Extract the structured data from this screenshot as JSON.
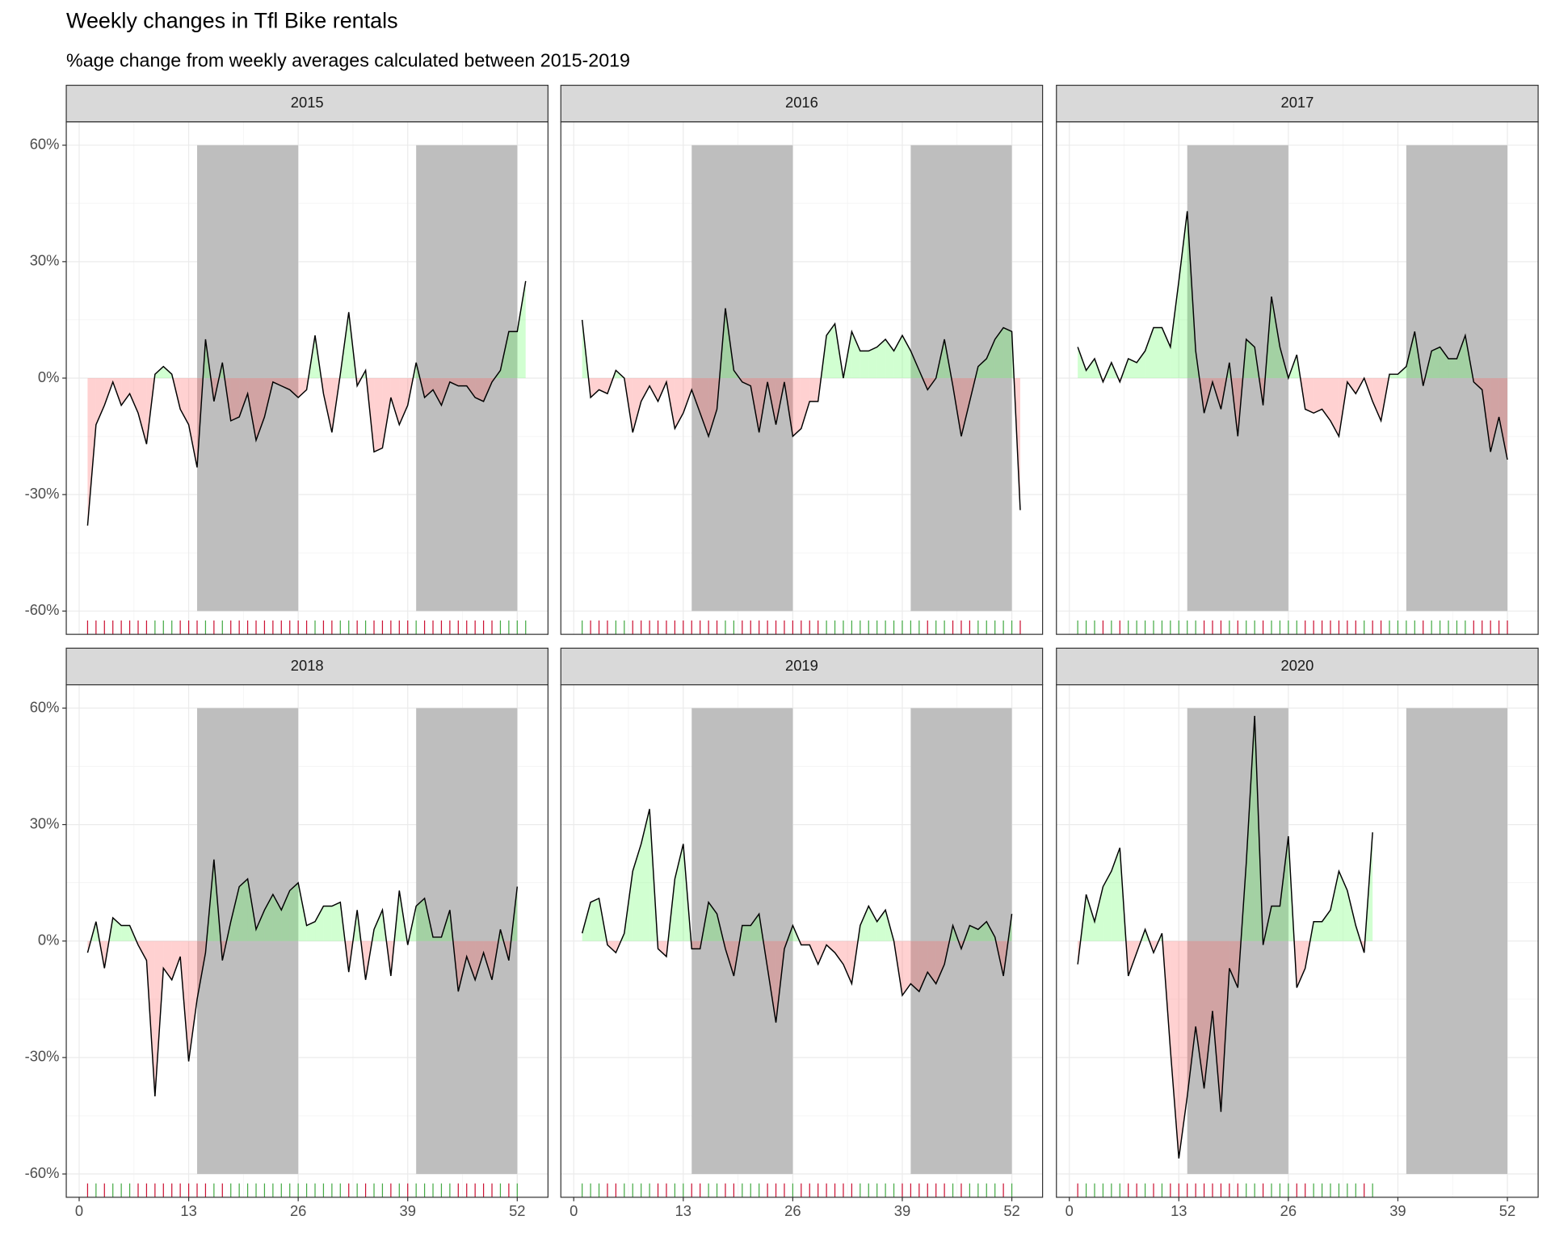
{
  "chart_data": {
    "type": "area",
    "title": "Weekly changes in Tfl Bike rentals",
    "subtitle": "%age change from weekly averages calculated between 2015-2019",
    "xlim": [
      -1.53,
      55.65
    ],
    "xticks": [
      0,
      13,
      26,
      39,
      52
    ],
    "ylim": [
      -66,
      66
    ],
    "yticks": [
      {
        "value": -60,
        "label": "-60%"
      },
      {
        "value": -30,
        "label": "-30%"
      },
      {
        "value": 0,
        "label": "0%"
      },
      {
        "value": 30,
        "label": "30%"
      },
      {
        "value": 60,
        "label": "60%"
      }
    ],
    "grid": true,
    "shaded": [
      {
        "x": [
          14,
          26
        ],
        "y": [
          -60,
          60
        ]
      },
      {
        "x": [
          40,
          52
        ],
        "y": [
          -60,
          60
        ]
      }
    ],
    "shade_color": "#bebebe",
    "positive_color": "#66ff66",
    "negative_color": "#ff6666",
    "rug_positive_color": "#44aa44",
    "rug_negative_color": "#cc1133",
    "line_color": "#000000",
    "facets": [
      {
        "title": "2015",
        "x": [
          1,
          2,
          3,
          4,
          5,
          6,
          7,
          8,
          9,
          10,
          11,
          12,
          13,
          14,
          15,
          16,
          17,
          18,
          19,
          20,
          21,
          22,
          23,
          24,
          25,
          26,
          27,
          28,
          29,
          30,
          31,
          32,
          33,
          34,
          35,
          36,
          37,
          38,
          39,
          40,
          41,
          42,
          43,
          44,
          45,
          46,
          47,
          48,
          49,
          50,
          51,
          52,
          53
        ],
        "values": [
          -38,
          -12,
          -7,
          -1,
          -7,
          -4,
          -9,
          -17,
          1,
          3,
          1,
          -8,
          -12,
          -23,
          10,
          -6,
          4,
          -11,
          -10,
          -4,
          -16,
          -10,
          -1,
          -2,
          -3,
          -5,
          -3,
          11,
          -4,
          -14,
          1,
          17,
          -2,
          2,
          -19,
          -18,
          -5,
          -12,
          -7,
          4,
          -5,
          -3,
          -7,
          -1,
          -2,
          -2,
          -5,
          -6,
          -1,
          2,
          12,
          12,
          25
        ]
      },
      {
        "title": "2016",
        "x": [
          1,
          2,
          3,
          4,
          5,
          6,
          7,
          8,
          9,
          10,
          11,
          12,
          13,
          14,
          15,
          16,
          17,
          18,
          19,
          20,
          21,
          22,
          23,
          24,
          25,
          26,
          27,
          28,
          29,
          30,
          31,
          32,
          33,
          34,
          35,
          36,
          37,
          38,
          39,
          40,
          41,
          42,
          43,
          44,
          45,
          46,
          47,
          48,
          49,
          50,
          51,
          52,
          53
        ],
        "values": [
          15,
          -5,
          -3,
          -4,
          2,
          0,
          -14,
          -6,
          -2,
          -6,
          -1,
          -13,
          -9,
          -3,
          -9,
          -15,
          -8,
          18,
          2,
          -1,
          -2,
          -14,
          -1,
          -12,
          -1,
          -15,
          -13,
          -6,
          -6,
          11,
          14,
          0,
          12,
          7,
          7,
          8,
          10,
          7,
          11,
          7,
          2,
          -3,
          0,
          10,
          -2,
          -15,
          -6,
          3,
          5,
          10,
          13,
          12,
          -34
        ]
      },
      {
        "title": "2017",
        "x": [
          1,
          2,
          3,
          4,
          5,
          6,
          7,
          8,
          9,
          10,
          11,
          12,
          13,
          14,
          15,
          16,
          17,
          18,
          19,
          20,
          21,
          22,
          23,
          24,
          25,
          26,
          27,
          28,
          29,
          30,
          31,
          32,
          33,
          34,
          35,
          36,
          37,
          38,
          39,
          40,
          41,
          42,
          43,
          44,
          45,
          46,
          47,
          48,
          49,
          50,
          51,
          52
        ],
        "values": [
          8,
          2,
          5,
          -1,
          4,
          -1,
          5,
          4,
          7,
          13,
          13,
          8,
          25,
          43,
          7,
          -9,
          -1,
          -8,
          4,
          -15,
          10,
          8,
          -7,
          21,
          8,
          0,
          6,
          -8,
          -9,
          -8,
          -11,
          -15,
          -1,
          -4,
          0,
          -6,
          -11,
          1,
          1,
          3,
          12,
          -2,
          7,
          8,
          5,
          5,
          11,
          -1,
          -3,
          -19,
          -10,
          -21
        ]
      },
      {
        "title": "2018",
        "x": [
          1,
          2,
          3,
          4,
          5,
          6,
          7,
          8,
          9,
          10,
          11,
          12,
          13,
          14,
          15,
          16,
          17,
          18,
          19,
          20,
          21,
          22,
          23,
          24,
          25,
          26,
          27,
          28,
          29,
          30,
          31,
          32,
          33,
          34,
          35,
          36,
          37,
          38,
          39,
          40,
          41,
          42,
          43,
          44,
          45,
          46,
          47,
          48,
          49,
          50,
          51,
          52
        ],
        "values": [
          -3,
          5,
          -7,
          6,
          4,
          4,
          -1,
          -5,
          -40,
          -7,
          -10,
          -4,
          -31,
          -15,
          -3,
          21,
          -5,
          5,
          14,
          16,
          3,
          8,
          12,
          8,
          13,
          15,
          4,
          5,
          9,
          9,
          10,
          -8,
          8,
          -10,
          3,
          8,
          -9,
          13,
          -1,
          9,
          11,
          1,
          1,
          8,
          -13,
          -4,
          -10,
          -3,
          -10,
          3,
          -5,
          14
        ]
      },
      {
        "title": "2019",
        "x": [
          1,
          2,
          3,
          4,
          5,
          6,
          7,
          8,
          9,
          10,
          11,
          12,
          13,
          14,
          15,
          16,
          17,
          18,
          19,
          20,
          21,
          22,
          23,
          24,
          25,
          26,
          27,
          28,
          29,
          30,
          31,
          32,
          33,
          34,
          35,
          36,
          37,
          38,
          39,
          40,
          41,
          42,
          43,
          44,
          45,
          46,
          47,
          48,
          49,
          50,
          51,
          52
        ],
        "values": [
          2,
          10,
          11,
          -1,
          -3,
          2,
          18,
          25,
          34,
          -2,
          -4,
          16,
          25,
          -2,
          -2,
          10,
          7,
          -2,
          -9,
          4,
          4,
          7,
          -7,
          -21,
          -2,
          4,
          -1,
          -1,
          -6,
          -1,
          -3,
          -6,
          -11,
          4,
          9,
          5,
          8,
          0,
          -14,
          -11,
          -13,
          -8,
          -11,
          -6,
          4,
          -2,
          4,
          3,
          5,
          1,
          -9,
          7
        ]
      },
      {
        "title": "2020",
        "x": [
          1,
          2,
          3,
          4,
          5,
          6,
          7,
          8,
          9,
          10,
          11,
          12,
          13,
          14,
          15,
          16,
          17,
          18,
          19,
          20,
          21,
          22,
          23,
          24,
          25,
          26,
          27,
          28,
          29,
          30,
          31,
          32,
          33,
          34,
          35,
          36
        ],
        "values": [
          -6,
          12,
          5,
          14,
          18,
          24,
          -9,
          -3,
          3,
          -3,
          2,
          -28,
          -56,
          -40,
          -22,
          -38,
          -18,
          -44,
          -7,
          -12,
          20,
          58,
          -1,
          9,
          9,
          27,
          -12,
          -7,
          5,
          5,
          8,
          18,
          13,
          4,
          -3,
          28
        ]
      }
    ]
  }
}
